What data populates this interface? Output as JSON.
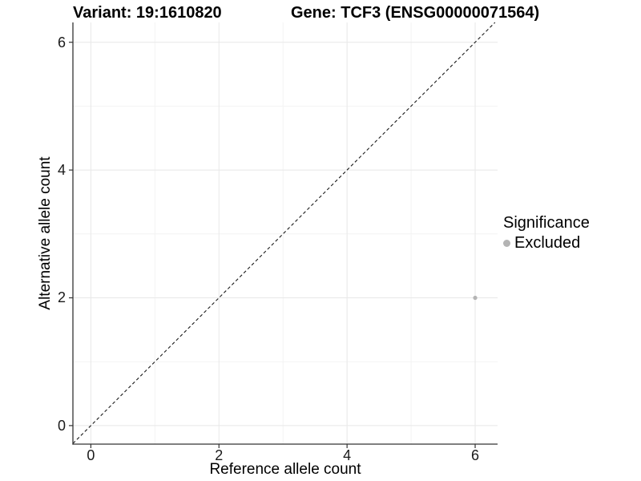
{
  "chart_data": {
    "type": "scatter",
    "titles": [
      {
        "text": "Variant: 19:1610820"
      },
      {
        "text": "Gene: TCF3 (ENSG00000071564)"
      }
    ],
    "xlabel": "Reference allele count",
    "ylabel": "Alternative allele count",
    "xlim": [
      -0.28,
      6.35
    ],
    "ylim": [
      -0.29,
      6.31
    ],
    "x_ticks": [
      0,
      2,
      4,
      6
    ],
    "y_ticks": [
      0,
      2,
      4,
      6
    ],
    "x_minor_ticks": [
      1,
      3,
      5
    ],
    "y_minor_ticks": [
      1,
      3,
      5
    ],
    "grid": true,
    "points": [
      {
        "x": 6,
        "y": 2,
        "series": "Excluded"
      }
    ],
    "abline": {
      "slope": 1,
      "intercept": 0,
      "style": "dashed",
      "color": "#1a1a1a"
    },
    "legend": {
      "position": "right",
      "title": "Significance",
      "entries": [
        {
          "label": "Excluded",
          "color": "#b4b4b4"
        }
      ]
    },
    "colors": {
      "background": "#ffffff",
      "point": "#b4b4b4",
      "grid_major": "#e8e8e8",
      "grid_minor": "#f3f3f3",
      "axis_line": "#333333",
      "tick_mark": "#333333",
      "text": "#000000"
    }
  }
}
